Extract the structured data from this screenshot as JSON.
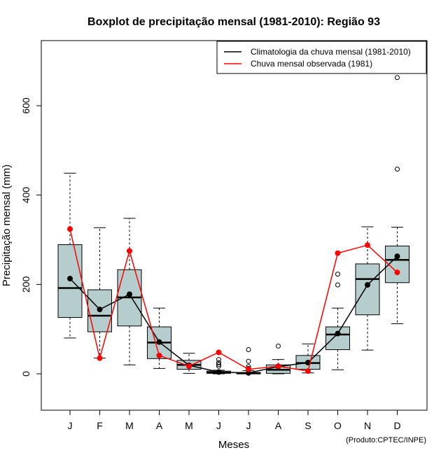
{
  "chart_data": {
    "type": "boxplot",
    "title": "Boxplot de precipitação mensal (1981-2010): Região 93",
    "xlabel": "Meses",
    "ylabel": "Precipitação mensal (mm)",
    "ylim": [
      -80,
      720
    ],
    "yticks": [
      0,
      200,
      400,
      600
    ],
    "categories": [
      "J",
      "F",
      "M",
      "A",
      "M",
      "J",
      "J",
      "A",
      "S",
      "O",
      "N",
      "D"
    ],
    "boxes": [
      {
        "month": "J",
        "whisker_low": 80,
        "q1": 126,
        "median": 192,
        "q3": 289,
        "whisker_high": 449,
        "outliers": []
      },
      {
        "month": "F",
        "whisker_low": 35,
        "q1": 94,
        "median": 130,
        "q3": 188,
        "whisker_high": 327,
        "outliers": []
      },
      {
        "month": "M",
        "whisker_low": 20,
        "q1": 107,
        "median": 171,
        "q3": 233,
        "whisker_high": 348,
        "outliers": []
      },
      {
        "month": "A",
        "whisker_low": 12,
        "q1": 34,
        "median": 70,
        "q3": 105,
        "whisker_high": 147,
        "outliers": []
      },
      {
        "month": "M",
        "whisker_low": 1,
        "q1": 10,
        "median": 20,
        "q3": 30,
        "whisker_high": 46,
        "outliers": []
      },
      {
        "month": "J",
        "whisker_low": 0,
        "q1": 1,
        "median": 3,
        "q3": 6,
        "whisker_high": 8,
        "outliers": [
          17,
          21,
          25,
          32
        ]
      },
      {
        "month": "J",
        "whisker_low": 0,
        "q1": 0,
        "median": 1,
        "q3": 3,
        "whisker_high": 7,
        "outliers": [
          12,
          16,
          28,
          54
        ]
      },
      {
        "month": "A",
        "whisker_low": 0,
        "q1": 1,
        "median": 9,
        "q3": 20,
        "whisker_high": 32,
        "outliers": [
          62
        ]
      },
      {
        "month": "S",
        "whisker_low": 2,
        "q1": 10,
        "median": 24,
        "q3": 41,
        "whisker_high": 67,
        "outliers": []
      },
      {
        "month": "O",
        "whisker_low": 9,
        "q1": 54,
        "median": 88,
        "q3": 105,
        "whisker_high": 147,
        "outliers": [
          199,
          223
        ]
      },
      {
        "month": "N",
        "whisker_low": 53,
        "q1": 132,
        "median": 212,
        "q3": 246,
        "whisker_high": 329,
        "outliers": []
      },
      {
        "month": "D",
        "whisker_low": 112,
        "q1": 204,
        "median": 255,
        "q3": 286,
        "whisker_high": 328,
        "outliers": [
          458,
          663
        ]
      }
    ],
    "series": [
      {
        "name": "Climatologia da chuva mensal (1981-2010)",
        "color": "#000000",
        "values": [
          213,
          144,
          178,
          71,
          19,
          4,
          2,
          16,
          25,
          90,
          199,
          263
        ]
      },
      {
        "name": "Chuva mensal observada (1981)",
        "color": "#ff0000",
        "values": [
          324,
          35,
          275,
          41,
          17,
          48,
          10,
          17,
          6,
          270,
          288,
          227
        ]
      }
    ],
    "box_fill": "#b5cdcd",
    "legend_position": "top-right",
    "credit": "(Produto:CPTEC/INPE)"
  }
}
